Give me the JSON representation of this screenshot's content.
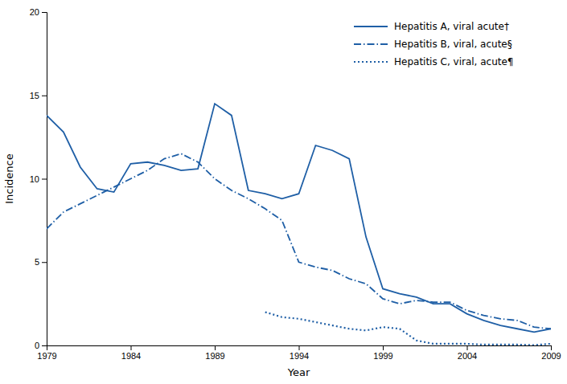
{
  "chart_data": {
    "type": "line",
    "x": [
      1979,
      1980,
      1981,
      1982,
      1983,
      1984,
      1985,
      1986,
      1987,
      1988,
      1989,
      1990,
      1991,
      1992,
      1993,
      1994,
      1995,
      1996,
      1997,
      1998,
      1999,
      2000,
      2001,
      2002,
      2003,
      2004,
      2005,
      2006,
      2007,
      2008,
      2009
    ],
    "series": [
      {
        "name": "Hepatitis A, viral acute†",
        "color": "#1F5FA6",
        "line_style": "solid",
        "values": [
          13.8,
          12.8,
          10.7,
          9.4,
          9.2,
          10.9,
          11.0,
          10.8,
          10.5,
          10.6,
          14.5,
          13.8,
          9.3,
          9.1,
          8.8,
          9.1,
          12.0,
          11.7,
          11.2,
          6.5,
          3.4,
          3.1,
          2.9,
          2.5,
          2.5,
          1.9,
          1.5,
          1.2,
          1.0,
          0.8,
          1.0
        ]
      },
      {
        "name": "Hepatitis B, viral, acute§",
        "color": "#1F5FA6",
        "line_style": "dashdot",
        "values": [
          7.0,
          8.0,
          8.5,
          9.0,
          9.5,
          10.0,
          10.5,
          11.2,
          11.5,
          11.0,
          10.0,
          9.3,
          8.8,
          8.2,
          7.5,
          5.0,
          4.7,
          4.5,
          4.0,
          3.7,
          2.8,
          2.5,
          2.7,
          2.6,
          2.6,
          2.1,
          1.8,
          1.6,
          1.5,
          1.1,
          1.0
        ]
      },
      {
        "name": "Hepatitis C, viral, acute¶",
        "color": "#1F5FA6",
        "line_style": "dotted",
        "values": [
          null,
          null,
          null,
          null,
          null,
          null,
          null,
          null,
          null,
          null,
          null,
          null,
          null,
          2.0,
          1.7,
          1.6,
          1.4,
          1.2,
          1.0,
          0.9,
          1.1,
          1.0,
          0.3,
          0.1,
          0.1,
          0.1,
          0.05,
          0.05,
          0.05,
          0.02,
          0.1
        ]
      }
    ],
    "xlabel": "Year",
    "ylabel": "Incidence",
    "xlim": [
      1979,
      2009
    ],
    "ylim": [
      0,
      20
    ],
    "xticks": [
      1979,
      1984,
      1989,
      1994,
      1999,
      2004,
      2009
    ],
    "yticks": [
      0,
      5,
      10,
      15,
      20
    ],
    "legend": "upper right"
  }
}
